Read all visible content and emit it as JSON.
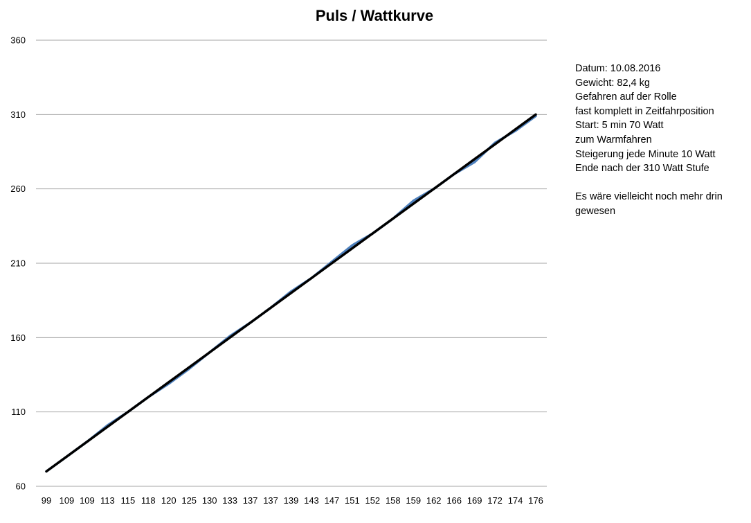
{
  "chart_data": {
    "type": "line",
    "title": "Puls / Wattkurve",
    "xlabel": "",
    "ylabel": "",
    "x_tick_labels": [
      "99",
      "109",
      "109",
      "113",
      "115",
      "118",
      "120",
      "125",
      "130",
      "133",
      "137",
      "137",
      "139",
      "143",
      "147",
      "151",
      "152",
      "158",
      "159",
      "162",
      "166",
      "169",
      "172",
      "174",
      "176"
    ],
    "yticks": [
      60,
      110,
      160,
      210,
      260,
      310,
      360
    ],
    "ylim": [
      60,
      360
    ],
    "grid": true,
    "legend": "none",
    "series": [
      {
        "color": "#4f81bd",
        "values": [
          70,
          80,
          90,
          101,
          110,
          120,
          129,
          139,
          150,
          161,
          170,
          180,
          191,
          200,
          211,
          222,
          230,
          240,
          252,
          260,
          270,
          278,
          291,
          299,
          309
        ]
      },
      {
        "color": "#000000",
        "values": [
          70,
          80,
          90,
          100,
          110,
          120,
          130,
          140,
          150,
          160,
          170,
          180,
          190,
          200,
          210,
          220,
          230,
          240,
          250,
          260,
          270,
          280,
          290,
          300,
          310
        ]
      }
    ]
  },
  "notes": [
    "Datum: 10.08.2016",
    "Gewicht: 82,4 kg",
    "Gefahren auf der Rolle",
    "fast komplett in Zeitfahrposition",
    "Start: 5 min 70 Watt",
    "zum Warmfahren",
    "Steigerung jede Minute 10 Watt",
    "Ende nach der 310 Watt Stufe",
    "",
    "Es wäre vielleicht noch mehr drin",
    "gewesen"
  ]
}
